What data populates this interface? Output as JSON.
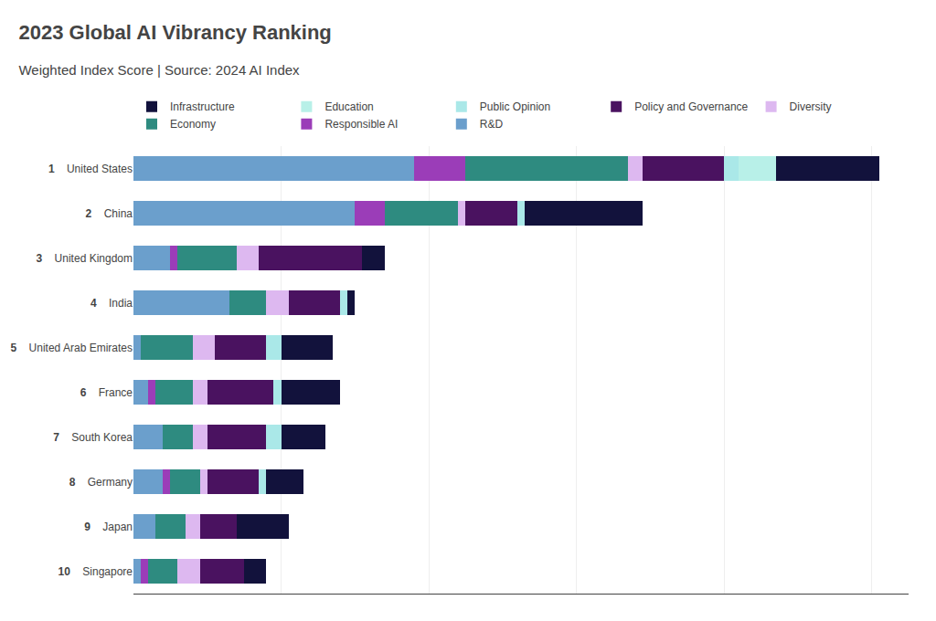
{
  "chart_data": {
    "type": "bar",
    "orientation": "horizontal",
    "stacked": true,
    "title": "2023 Global AI Vibrancy Ranking",
    "subtitle": "Weighted Index Score | Source: 2024 AI Index",
    "categories": [
      "United States",
      "China",
      "United Kingdom",
      "India",
      "United Arab Emirates",
      "France",
      "South Korea",
      "Germany",
      "Japan",
      "Singapore"
    ],
    "ranks": [
      1,
      2,
      3,
      4,
      5,
      6,
      7,
      8,
      9,
      10
    ],
    "series": [
      {
        "name": "R&D",
        "color": "#6B9FCC",
        "values": [
          38,
          30,
          5,
          13,
          1,
          2,
          4,
          4,
          3,
          1
        ]
      },
      {
        "name": "Responsible AI",
        "color": "#9B3DB8",
        "values": [
          7,
          4,
          1,
          0,
          0,
          1,
          0,
          1,
          0,
          1
        ]
      },
      {
        "name": "Economy",
        "color": "#2E8B80",
        "values": [
          22,
          10,
          8,
          5,
          7,
          5,
          4,
          4,
          4,
          4
        ]
      },
      {
        "name": "Diversity",
        "color": "#DDB8F0",
        "values": [
          2,
          1,
          3,
          3,
          3,
          2,
          2,
          1,
          2,
          3
        ]
      },
      {
        "name": "Policy and Governance",
        "color": "#4A1260",
        "values": [
          11,
          7,
          14,
          7,
          7,
          9,
          8,
          7,
          5,
          6
        ]
      },
      {
        "name": "Public Opinion",
        "color": "#AAE8E8",
        "values": [
          2,
          1,
          0,
          1,
          2,
          1,
          2,
          1,
          0,
          0
        ]
      },
      {
        "name": "Education",
        "color": "#B8F0E8",
        "values": [
          5,
          0,
          0,
          0,
          0,
          0,
          0,
          0,
          0,
          0
        ]
      },
      {
        "name": "Infrastructure",
        "color": "#12123C",
        "values": [
          14,
          16,
          3,
          1,
          7,
          8,
          6,
          5,
          7,
          3
        ]
      }
    ],
    "xlim": [
      0,
      105
    ],
    "xticks": [
      0,
      20,
      40,
      60,
      80,
      100
    ],
    "grid": true,
    "legend": "top",
    "tick_labels": "y"
  }
}
